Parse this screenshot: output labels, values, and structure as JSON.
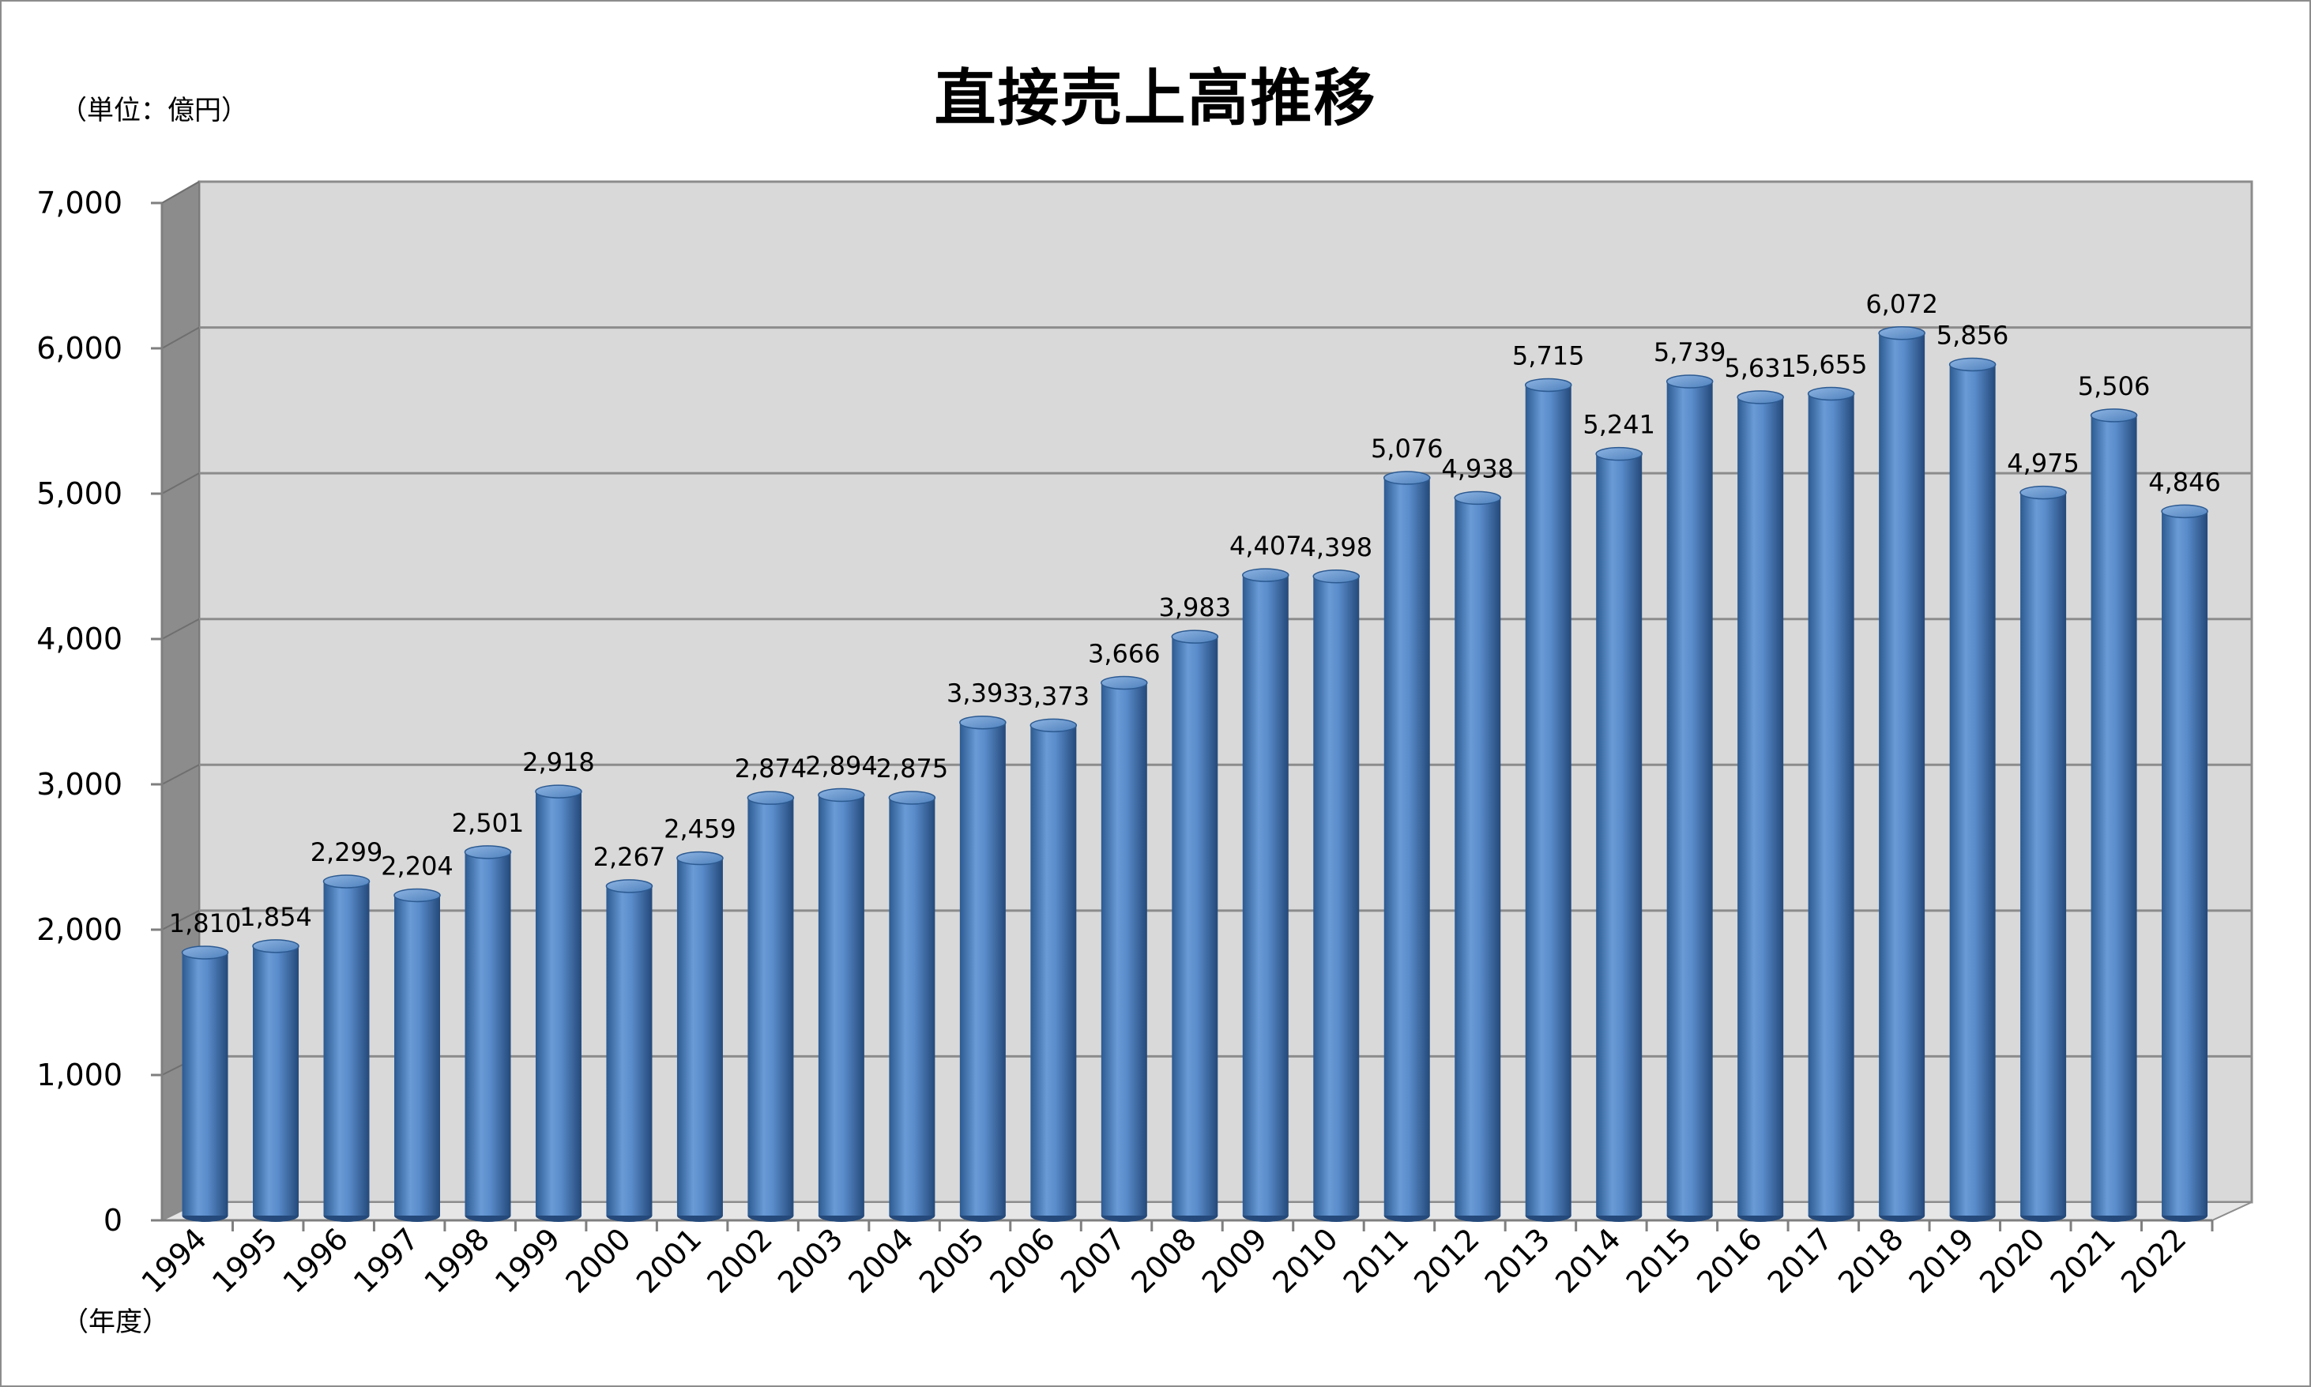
{
  "header": {
    "unit_label": "（単位：億円）",
    "x_unit_label": "（年度）"
  },
  "colors": {
    "bar": "#4f81bd",
    "bar_dark": "#2c5a91",
    "bar_light": "#8db4e2",
    "plot_wall": "#d9d9d9",
    "side_wall": "#8c8c8c",
    "gridline": "#8c8c8c"
  },
  "chart_data": {
    "type": "bar",
    "title": "直接売上高推移",
    "xlabel": "（年度）",
    "ylabel": "（単位：億円）",
    "ylim": [
      0,
      7000
    ],
    "yticks": [
      0,
      1000,
      2000,
      3000,
      4000,
      5000,
      6000,
      7000
    ],
    "ytick_labels": [
      "0",
      "1,000",
      "2,000",
      "3,000",
      "4,000",
      "5,000",
      "6,000",
      "7,000"
    ],
    "grid": true,
    "style": "3d-cylinder",
    "categories": [
      "1994",
      "1995",
      "1996",
      "1997",
      "1998",
      "1999",
      "2000",
      "2001",
      "2002",
      "2003",
      "2004",
      "2005",
      "2006",
      "2007",
      "2008",
      "2009",
      "2010",
      "2011",
      "2012",
      "2013",
      "2014",
      "2015",
      "2016",
      "2017",
      "2018",
      "2019",
      "2020",
      "2021",
      "2022"
    ],
    "values": [
      1810,
      1854,
      2299,
      2204,
      2501,
      2918,
      2267,
      2459,
      2874,
      2894,
      2875,
      3393,
      3373,
      3666,
      3983,
      4407,
      4398,
      5076,
      4938,
      5715,
      5241,
      5739,
      5631,
      5655,
      6072,
      5856,
      4975,
      5506,
      4846
    ],
    "data_labels": [
      "1,810",
      "1,854",
      "2,299",
      "2,204",
      "2,501",
      "2,918",
      "2,267",
      "2,459",
      "2,874",
      "2,894",
      "2,875",
      "3,393",
      "3,373",
      "3,666",
      "3,983",
      "4,407",
      "4,398",
      "5,076",
      "4,938",
      "5,715",
      "5,241",
      "5,739",
      "5,631",
      "5,655",
      "6,072",
      "5,856",
      "4,975",
      "5,506",
      "4,846"
    ]
  }
}
